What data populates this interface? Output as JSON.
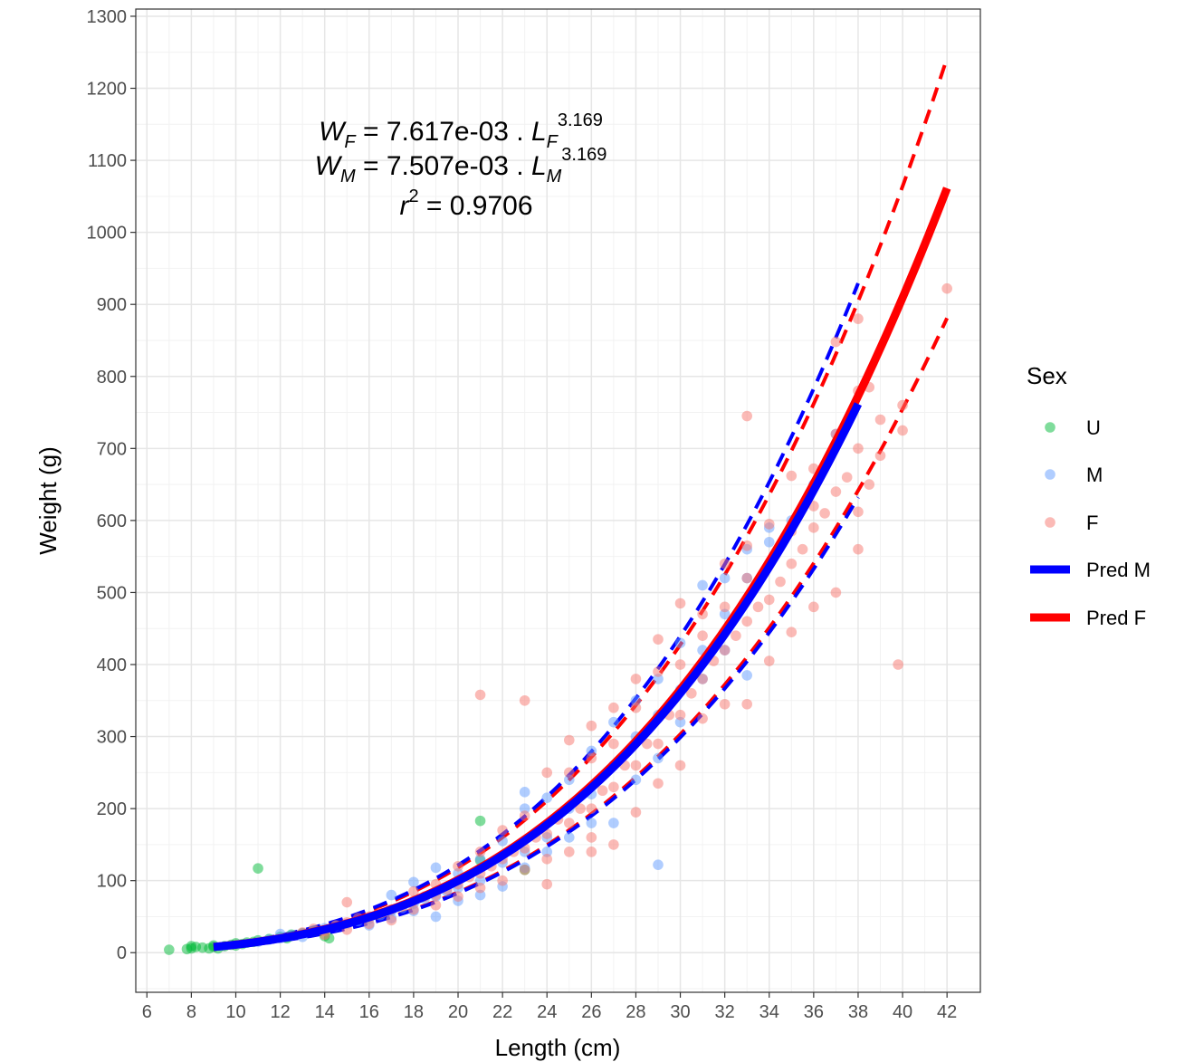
{
  "chart_data": {
    "type": "scatter",
    "xlabel": "Length (cm)",
    "ylabel": "Weight (g)",
    "xlim": [
      5.5,
      43.5
    ],
    "ylim": [
      -55,
      1310
    ],
    "x_ticks": [
      6,
      8,
      10,
      12,
      14,
      16,
      18,
      20,
      22,
      24,
      26,
      28,
      30,
      32,
      34,
      36,
      38,
      40,
      42
    ],
    "y_ticks": [
      0,
      100,
      200,
      300,
      400,
      500,
      600,
      700,
      800,
      900,
      1000,
      1100,
      1200,
      1300
    ],
    "grid": true,
    "legend": {
      "title": "Sex",
      "placement": "right",
      "entries": [
        {
          "label": "U",
          "kind": "point",
          "color": "#00BA38"
        },
        {
          "label": "M",
          "kind": "point",
          "color": "#619CFF"
        },
        {
          "label": "F",
          "kind": "point",
          "color": "#F8766D"
        },
        {
          "label": "Pred M",
          "kind": "line",
          "color": "#0000FF"
        },
        {
          "label": "Pred F",
          "kind": "line",
          "color": "#FF0000"
        }
      ]
    },
    "annotation": {
      "line1": {
        "w": "W",
        "w_sub": "F",
        "eq": " = 7.617e-03 . ",
        "l": "L",
        "l_sub": "F",
        "exp": "3.169"
      },
      "line2": {
        "w": "W",
        "w_sub": "M",
        "eq": " = 7.507e-03 . ",
        "l": "L",
        "l_sub": "M",
        "exp": "3.169"
      },
      "line3": {
        "r": "r",
        "exp": "2",
        "eq": " = 0.9706"
      }
    },
    "models": {
      "F": {
        "a": 0.007617,
        "b": 3.169,
        "x_range": [
          9,
          42
        ],
        "color": "#FF0000",
        "band_lower": 0.83,
        "band_upper": 1.17
      },
      "M": {
        "a": 0.007507,
        "b": 3.169,
        "x_range": [
          9,
          38
        ],
        "color": "#0000FF",
        "band_lower": 0.83,
        "band_upper": 1.22
      }
    },
    "series": [
      {
        "name": "U",
        "color": "#00BA38",
        "points": [
          [
            7,
            4
          ],
          [
            7.8,
            5
          ],
          [
            8,
            6
          ],
          [
            8,
            9
          ],
          [
            8.2,
            8
          ],
          [
            8.5,
            7
          ],
          [
            8.8,
            6
          ],
          [
            9,
            8
          ],
          [
            9,
            10
          ],
          [
            9.2,
            6
          ],
          [
            9.5,
            9
          ],
          [
            9.8,
            11
          ],
          [
            10,
            10
          ],
          [
            10,
            13
          ],
          [
            10.3,
            12
          ],
          [
            10.5,
            14
          ],
          [
            10.8,
            15
          ],
          [
            11,
            17
          ],
          [
            11,
            117
          ],
          [
            11.5,
            19
          ],
          [
            12,
            22
          ],
          [
            12.3,
            20
          ],
          [
            12.5,
            25
          ],
          [
            13,
            27
          ],
          [
            13.5,
            30
          ],
          [
            14,
            23
          ],
          [
            14.2,
            20
          ],
          [
            21,
            183
          ],
          [
            21,
            128
          ],
          [
            23,
            115
          ]
        ]
      },
      {
        "name": "M",
        "color": "#619CFF",
        "points": [
          [
            11,
            15
          ],
          [
            11.5,
            18
          ],
          [
            12,
            20
          ],
          [
            12,
            26
          ],
          [
            12.5,
            24
          ],
          [
            13,
            27
          ],
          [
            13,
            22
          ],
          [
            13.5,
            31
          ],
          [
            14,
            34
          ],
          [
            14.5,
            37
          ],
          [
            15,
            40
          ],
          [
            15.5,
            44
          ],
          [
            16,
            47
          ],
          [
            16,
            38
          ],
          [
            16.5,
            52
          ],
          [
            17,
            58
          ],
          [
            17,
            48
          ],
          [
            17,
            80
          ],
          [
            17.5,
            62
          ],
          [
            18,
            68
          ],
          [
            18,
            58
          ],
          [
            18,
            98
          ],
          [
            18.5,
            75
          ],
          [
            19,
            78
          ],
          [
            19,
            50
          ],
          [
            19,
            118
          ],
          [
            19.5,
            85
          ],
          [
            20,
            90
          ],
          [
            20,
            110
          ],
          [
            20,
            72
          ],
          [
            21,
            100
          ],
          [
            21,
            130
          ],
          [
            21,
            80
          ],
          [
            22,
            125
          ],
          [
            22,
            92
          ],
          [
            22,
            155
          ],
          [
            23,
            140
          ],
          [
            23,
            118
          ],
          [
            23,
            200
          ],
          [
            23,
            223
          ],
          [
            24,
            160
          ],
          [
            24,
            140
          ],
          [
            24,
            215
          ],
          [
            25,
            200
          ],
          [
            25,
            160
          ],
          [
            25,
            240
          ],
          [
            26,
            220
          ],
          [
            26,
            180
          ],
          [
            26,
            280
          ],
          [
            27,
            260
          ],
          [
            27,
            180
          ],
          [
            27,
            320
          ],
          [
            28,
            300
          ],
          [
            28,
            240
          ],
          [
            28,
            350
          ],
          [
            29,
            330
          ],
          [
            29,
            122
          ],
          [
            29,
            270
          ],
          [
            29,
            380
          ],
          [
            30,
            365
          ],
          [
            30,
            320
          ],
          [
            30,
            430
          ],
          [
            31,
            420
          ],
          [
            31,
            380
          ],
          [
            31,
            510
          ],
          [
            32,
            470
          ],
          [
            32,
            420
          ],
          [
            32,
            520
          ],
          [
            33,
            520
          ],
          [
            33,
            385
          ],
          [
            33,
            560
          ],
          [
            34,
            570
          ],
          [
            34,
            590
          ],
          [
            35,
            600
          ],
          [
            36,
            650
          ],
          [
            37,
            720
          ]
        ]
      },
      {
        "name": "F",
        "color": "#F8766D",
        "points": [
          [
            13,
            28
          ],
          [
            13.5,
            33
          ],
          [
            14,
            30
          ],
          [
            14,
            25
          ],
          [
            14.5,
            38
          ],
          [
            15,
            42
          ],
          [
            15,
            32
          ],
          [
            15,
            70
          ],
          [
            15.5,
            48
          ],
          [
            16,
            50
          ],
          [
            16,
            40
          ],
          [
            16.5,
            55
          ],
          [
            17,
            60
          ],
          [
            17,
            45
          ],
          [
            17.5,
            65
          ],
          [
            18,
            72
          ],
          [
            18,
            60
          ],
          [
            18,
            85
          ],
          [
            18.5,
            78
          ],
          [
            19,
            80
          ],
          [
            19,
            66
          ],
          [
            19,
            95
          ],
          [
            19.5,
            88
          ],
          [
            20,
            95
          ],
          [
            20,
            78
          ],
          [
            20,
            120
          ],
          [
            20.5,
            105
          ],
          [
            21,
            110
          ],
          [
            21,
            90
          ],
          [
            21,
            358
          ],
          [
            21,
            140
          ],
          [
            21.5,
            120
          ],
          [
            22,
            130
          ],
          [
            22,
            100
          ],
          [
            22,
            170
          ],
          [
            22.5,
            140
          ],
          [
            23,
            145
          ],
          [
            23,
            115
          ],
          [
            23,
            350
          ],
          [
            23,
            190
          ],
          [
            23.5,
            160
          ],
          [
            24,
            165
          ],
          [
            24,
            130
          ],
          [
            24,
            250
          ],
          [
            24,
            95
          ],
          [
            24.5,
            185
          ],
          [
            25,
            180
          ],
          [
            25,
            140
          ],
          [
            25,
            250
          ],
          [
            25,
            295
          ],
          [
            25.5,
            200
          ],
          [
            26,
            200
          ],
          [
            26,
            140
          ],
          [
            26,
            160
          ],
          [
            26,
            270
          ],
          [
            26,
            315
          ],
          [
            26.5,
            225
          ],
          [
            27,
            230
          ],
          [
            27,
            150
          ],
          [
            27,
            290
          ],
          [
            27,
            340
          ],
          [
            27.5,
            260
          ],
          [
            28,
            260
          ],
          [
            28,
            195
          ],
          [
            28,
            340
          ],
          [
            28,
            380
          ],
          [
            28.5,
            290
          ],
          [
            29,
            290
          ],
          [
            29,
            235
          ],
          [
            29,
            390
          ],
          [
            29,
            435
          ],
          [
            29.5,
            330
          ],
          [
            30,
            330
          ],
          [
            30,
            260
          ],
          [
            30,
            400
          ],
          [
            30,
            485
          ],
          [
            30.5,
            360
          ],
          [
            31,
            380
          ],
          [
            31,
            325
          ],
          [
            31,
            440
          ],
          [
            31,
            470
          ],
          [
            31.5,
            405
          ],
          [
            32,
            420
          ],
          [
            32,
            345
          ],
          [
            32,
            480
          ],
          [
            32,
            540
          ],
          [
            32.5,
            440
          ],
          [
            33,
            460
          ],
          [
            33,
            345
          ],
          [
            33,
            520
          ],
          [
            33,
            565
          ],
          [
            33,
            745
          ],
          [
            33.5,
            480
          ],
          [
            34,
            490
          ],
          [
            34,
            405
          ],
          [
            34,
            540
          ],
          [
            34,
            595
          ],
          [
            34.5,
            515
          ],
          [
            35,
            540
          ],
          [
            35,
            445
          ],
          [
            35,
            585
          ],
          [
            35,
            662
          ],
          [
            35.5,
            560
          ],
          [
            36,
            590
          ],
          [
            36,
            480
          ],
          [
            36,
            620
          ],
          [
            36,
            672
          ],
          [
            36.5,
            610
          ],
          [
            37,
            640
          ],
          [
            37,
            500
          ],
          [
            37,
            720
          ],
          [
            37,
            848
          ],
          [
            37.5,
            660
          ],
          [
            38,
            700
          ],
          [
            38,
            560
          ],
          [
            38,
            612
          ],
          [
            38,
            780
          ],
          [
            38,
            880
          ],
          [
            38.5,
            650
          ],
          [
            38.5,
            785
          ],
          [
            39,
            740
          ],
          [
            39,
            690
          ],
          [
            39.8,
            400
          ],
          [
            40,
            725
          ],
          [
            40,
            760
          ],
          [
            42,
            922
          ]
        ]
      }
    ]
  }
}
